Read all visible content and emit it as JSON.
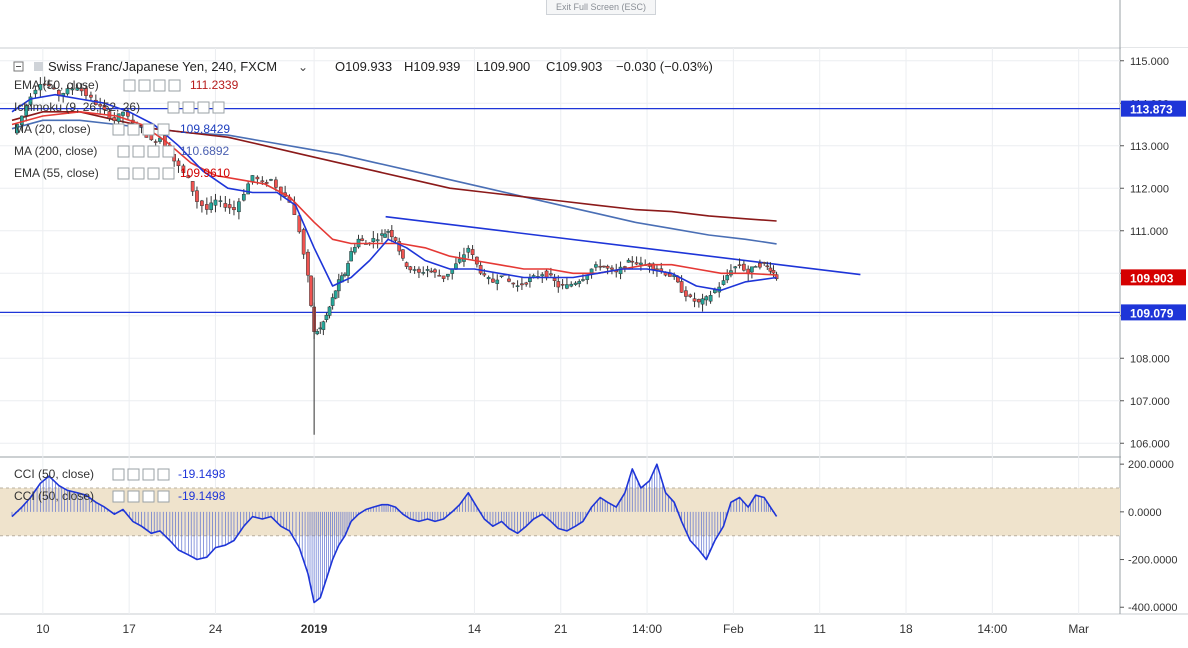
{
  "header": {
    "exit_label": "Exit Full Screen (ESC)",
    "symbol": "Swiss Franc/Japanese Yen, 240, FXCM",
    "ohlc": {
      "o": "O109.933",
      "h": "H109.939",
      "l": "L109.900",
      "c": "C109.903",
      "chg": "−0.030 (−0.03%)"
    }
  },
  "indicators": [
    {
      "label": "EMA (50, close)",
      "value": "111.2339",
      "value_color": "#b71c1c"
    },
    {
      "label": "Ichimoku (9, 26, 52, 26)",
      "value": "",
      "value_color": "#1e3fbf"
    },
    {
      "label": "MA (20, close)",
      "value": "109.8429",
      "value_color": "#1e3fbf"
    },
    {
      "label": "MA (200, close)",
      "value": "110.6892",
      "value_color": "#4a5fb0"
    },
    {
      "label": "EMA (55, close)",
      "value": "109.9610",
      "value_color": "#d00000"
    }
  ],
  "cci_legend": [
    {
      "label": "CCI (50, close)",
      "value": "-19.1498"
    },
    {
      "label": "CCI (50, close)",
      "value": "-19.1498"
    }
  ],
  "colors": {
    "up": "#26a69a",
    "down": "#ef5350",
    "ma20": "#1e35d8",
    "ema55": "#e53935",
    "ma200": "#4a6fb5",
    "ema50": "#8b1a1a",
    "trend": "#1e35d8",
    "cci": "#1e35d8",
    "band": "#efe3cc"
  },
  "chart_data": {
    "type": "candlestick",
    "title": "Swiss Franc/Japanese Yen, 240, FXCM",
    "price_axis": {
      "ticks": [
        "115.000",
        "114.000",
        "113.000",
        "112.000",
        "111.000",
        "110.000",
        "109.000",
        "108.000",
        "107.000",
        "106.000"
      ],
      "range": [
        105.7,
        115.3
      ]
    },
    "x_ticks": [
      {
        "label": "10",
        "x": 10,
        "bold": false
      },
      {
        "label": "17",
        "x": 17,
        "bold": false
      },
      {
        "label": "24",
        "x": 24,
        "bold": false
      },
      {
        "label": "2019",
        "x": 32,
        "bold": true
      },
      {
        "label": "14",
        "x": 45,
        "bold": false
      },
      {
        "label": "21",
        "x": 52,
        "bold": false
      },
      {
        "label": "14:00",
        "x": 59,
        "bold": false
      },
      {
        "label": "Feb",
        "x": 66,
        "bold": false
      },
      {
        "label": "11",
        "x": 73,
        "bold": false
      },
      {
        "label": "18",
        "x": 80,
        "bold": false
      },
      {
        "label": "14:00",
        "x": 87,
        "bold": false
      },
      {
        "label": "Mar",
        "x": 94,
        "bold": false
      }
    ],
    "x_range": [
      7.5,
      98
    ],
    "last_candle_x": 69.5,
    "candle_close_path": [
      [
        7.5,
        113.3
      ],
      [
        8.3,
        113.7
      ],
      [
        9.0,
        114.2
      ],
      [
        9.8,
        114.5
      ],
      [
        10.5,
        114.4
      ],
      [
        11.3,
        114.2
      ],
      [
        12.0,
        114.3
      ],
      [
        12.8,
        114.4
      ],
      [
        13.5,
        114.2
      ],
      [
        14.3,
        114.0
      ],
      [
        15.0,
        113.8
      ],
      [
        15.8,
        113.6
      ],
      [
        16.5,
        113.8
      ],
      [
        17.3,
        113.5
      ],
      [
        18.0,
        113.4
      ],
      [
        18.8,
        113.1
      ],
      [
        19.5,
        113.2
      ],
      [
        20.3,
        112.8
      ],
      [
        21.0,
        112.5
      ],
      [
        21.8,
        112.2
      ],
      [
        22.5,
        111.7
      ],
      [
        23.3,
        111.5
      ],
      [
        24.0,
        111.7
      ],
      [
        24.8,
        111.6
      ],
      [
        25.5,
        111.5
      ],
      [
        26.3,
        111.9
      ],
      [
        27.0,
        112.3
      ],
      [
        27.8,
        112.1
      ],
      [
        28.5,
        112.2
      ],
      [
        29.3,
        111.9
      ],
      [
        30.0,
        111.7
      ],
      [
        30.8,
        111.0
      ],
      [
        31.5,
        109.9
      ],
      [
        32.0,
        108.6
      ],
      [
        32.5,
        108.7
      ],
      [
        33.0,
        109.0
      ],
      [
        33.5,
        109.4
      ],
      [
        34.0,
        109.8
      ],
      [
        34.5,
        110.0
      ],
      [
        35.0,
        110.5
      ],
      [
        35.6,
        110.8
      ],
      [
        36.2,
        110.7
      ],
      [
        36.8,
        110.8
      ],
      [
        37.5,
        110.9
      ],
      [
        38.0,
        111.0
      ],
      [
        38.6,
        110.8
      ],
      [
        39.2,
        110.3
      ],
      [
        39.8,
        110.1
      ],
      [
        40.5,
        110.0
      ],
      [
        41.2,
        110.1
      ],
      [
        41.8,
        110.0
      ],
      [
        42.5,
        109.9
      ],
      [
        43.2,
        110.1
      ],
      [
        43.8,
        110.3
      ],
      [
        44.5,
        110.6
      ],
      [
        45.2,
        110.2
      ],
      [
        45.8,
        109.9
      ],
      [
        46.5,
        109.8
      ],
      [
        47.2,
        110.0
      ],
      [
        47.8,
        109.8
      ],
      [
        48.5,
        109.7
      ],
      [
        49.2,
        109.8
      ],
      [
        49.8,
        109.9
      ],
      [
        50.5,
        110.0
      ],
      [
        51.2,
        109.9
      ],
      [
        51.8,
        109.7
      ],
      [
        52.5,
        109.7
      ],
      [
        53.2,
        109.8
      ],
      [
        53.8,
        109.9
      ],
      [
        54.5,
        110.1
      ],
      [
        55.2,
        110.2
      ],
      [
        55.8,
        110.1
      ],
      [
        56.5,
        110.0
      ],
      [
        57.2,
        110.2
      ],
      [
        57.8,
        110.3
      ],
      [
        58.5,
        110.2
      ],
      [
        59.2,
        110.2
      ],
      [
        59.8,
        110.1
      ],
      [
        60.5,
        110.0
      ],
      [
        61.2,
        109.9
      ],
      [
        61.8,
        109.6
      ],
      [
        62.5,
        109.4
      ],
      [
        63.2,
        109.3
      ],
      [
        63.8,
        109.4
      ],
      [
        64.5,
        109.6
      ],
      [
        65.2,
        109.8
      ],
      [
        65.8,
        110.1
      ],
      [
        66.5,
        110.2
      ],
      [
        67.2,
        110.0
      ],
      [
        67.8,
        110.2
      ],
      [
        68.5,
        110.2
      ],
      [
        69.0,
        110.1
      ],
      [
        69.5,
        109.9
      ]
    ],
    "ma20_line": [
      [
        7.5,
        113.8
      ],
      [
        9,
        114.1
      ],
      [
        11,
        114.2
      ],
      [
        13,
        114.1
      ],
      [
        15,
        114.0
      ],
      [
        17,
        113.8
      ],
      [
        19,
        113.5
      ],
      [
        21,
        113.0
      ],
      [
        23,
        112.4
      ],
      [
        25,
        112.0
      ],
      [
        27,
        111.9
      ],
      [
        29,
        111.9
      ],
      [
        30.5,
        111.6
      ],
      [
        32,
        110.6
      ],
      [
        33.5,
        109.7
      ],
      [
        35,
        109.9
      ],
      [
        36.5,
        110.3
      ],
      [
        38,
        110.8
      ],
      [
        39.5,
        110.6
      ],
      [
        41,
        110.3
      ],
      [
        43,
        110.1
      ],
      [
        45,
        110.1
      ],
      [
        47,
        110.0
      ],
      [
        49,
        109.9
      ],
      [
        51,
        109.9
      ],
      [
        53,
        109.9
      ],
      [
        55,
        110.0
      ],
      [
        57,
        110.1
      ],
      [
        59,
        110.1
      ],
      [
        61,
        110.0
      ],
      [
        63,
        109.7
      ],
      [
        65,
        109.6
      ],
      [
        67,
        109.8
      ],
      [
        69.5,
        109.9
      ]
    ],
    "ema55_line": [
      [
        7.5,
        113.5
      ],
      [
        10,
        113.7
      ],
      [
        13,
        113.8
      ],
      [
        16,
        113.7
      ],
      [
        18,
        113.5
      ],
      [
        20,
        113.1
      ],
      [
        22,
        112.6
      ],
      [
        24,
        112.3
      ],
      [
        26,
        112.2
      ],
      [
        28,
        112.1
      ],
      [
        30,
        111.8
      ],
      [
        32,
        111.2
      ],
      [
        33.5,
        110.8
      ],
      [
        35,
        110.7
      ],
      [
        37,
        110.7
      ],
      [
        39,
        110.7
      ],
      [
        41,
        110.6
      ],
      [
        43,
        110.4
      ],
      [
        45,
        110.3
      ],
      [
        47,
        110.2
      ],
      [
        49,
        110.1
      ],
      [
        51,
        110.1
      ],
      [
        53,
        110.0
      ],
      [
        55,
        110.0
      ],
      [
        57,
        110.1
      ],
      [
        59,
        110.2
      ],
      [
        61,
        110.2
      ],
      [
        63,
        110.1
      ],
      [
        65,
        110.0
      ],
      [
        67,
        110.0
      ],
      [
        69.5,
        109.96
      ]
    ],
    "ema50_line": [
      [
        7.5,
        113.6
      ],
      [
        10,
        113.8
      ],
      [
        13,
        113.8
      ],
      [
        16,
        113.6
      ],
      [
        19,
        113.4
      ],
      [
        22,
        113.3
      ],
      [
        25,
        113.2
      ],
      [
        28,
        113.0
      ],
      [
        31,
        112.8
      ],
      [
        34,
        112.6
      ],
      [
        37,
        112.4
      ],
      [
        40,
        112.2
      ],
      [
        43,
        112.0
      ],
      [
        46,
        111.9
      ],
      [
        49,
        111.8
      ],
      [
        52,
        111.7
      ],
      [
        55,
        111.6
      ],
      [
        58,
        111.5
      ],
      [
        61,
        111.45
      ],
      [
        64,
        111.35
      ],
      [
        67,
        111.28
      ],
      [
        69.5,
        111.23
      ]
    ],
    "ma200_line": [
      [
        7.5,
        113.4
      ],
      [
        10,
        113.6
      ],
      [
        13,
        113.6
      ],
      [
        16,
        113.5
      ],
      [
        19,
        113.4
      ],
      [
        22,
        113.3
      ],
      [
        25,
        113.25
      ],
      [
        28,
        113.1
      ],
      [
        31,
        112.95
      ],
      [
        34,
        112.8
      ],
      [
        37,
        112.6
      ],
      [
        40,
        112.4
      ],
      [
        43,
        112.2
      ],
      [
        46,
        112.0
      ],
      [
        49,
        111.8
      ],
      [
        52,
        111.6
      ],
      [
        55,
        111.4
      ],
      [
        58,
        111.2
      ],
      [
        61,
        111.05
      ],
      [
        64,
        110.9
      ],
      [
        67,
        110.8
      ],
      [
        69.5,
        110.69
      ]
    ],
    "trendline": [
      [
        37.8,
        111.33
      ],
      [
        76.3,
        109.97
      ]
    ],
    "horizontal_levels": [
      {
        "value": 113.873,
        "label": "113.873"
      },
      {
        "value": 109.079,
        "label": "109.079"
      }
    ],
    "last_price": {
      "value": 109.903,
      "label": "109.903"
    },
    "cci": {
      "ticks": [
        "200.0000",
        "0.0000",
        "-200.0000",
        "-400.0000"
      ],
      "range": [
        -420,
        230
      ],
      "band": [
        100,
        -100
      ],
      "series": [
        [
          7.5,
          -20
        ],
        [
          8.3,
          20
        ],
        [
          9.0,
          60
        ],
        [
          9.8,
          120
        ],
        [
          10.5,
          150
        ],
        [
          11.3,
          110
        ],
        [
          12.0,
          90
        ],
        [
          12.8,
          80
        ],
        [
          13.5,
          70
        ],
        [
          14.3,
          40
        ],
        [
          15.0,
          20
        ],
        [
          15.8,
          -10
        ],
        [
          16.5,
          10
        ],
        [
          17.3,
          -40
        ],
        [
          18.0,
          -60
        ],
        [
          18.8,
          -90
        ],
        [
          19.5,
          -80
        ],
        [
          20.3,
          -120
        ],
        [
          21.0,
          -160
        ],
        [
          21.8,
          -180
        ],
        [
          22.5,
          -200
        ],
        [
          23.3,
          -190
        ],
        [
          24.0,
          -150
        ],
        [
          24.8,
          -140
        ],
        [
          25.5,
          -120
        ],
        [
          26.3,
          -60
        ],
        [
          27.0,
          -20
        ],
        [
          27.8,
          -30
        ],
        [
          28.5,
          -20
        ],
        [
          29.3,
          -60
        ],
        [
          30.0,
          -80
        ],
        [
          30.8,
          -150
        ],
        [
          31.5,
          -260
        ],
        [
          32.0,
          -380
        ],
        [
          32.5,
          -360
        ],
        [
          33.0,
          -280
        ],
        [
          33.5,
          -200
        ],
        [
          34.0,
          -140
        ],
        [
          34.5,
          -100
        ],
        [
          35.0,
          -40
        ],
        [
          35.6,
          -10
        ],
        [
          36.2,
          10
        ],
        [
          36.8,
          20
        ],
        [
          37.5,
          30
        ],
        [
          38.0,
          30
        ],
        [
          38.6,
          20
        ],
        [
          39.2,
          -10
        ],
        [
          39.8,
          -30
        ],
        [
          40.5,
          -40
        ],
        [
          41.2,
          -30
        ],
        [
          41.8,
          -40
        ],
        [
          42.5,
          -30
        ],
        [
          43.2,
          0
        ],
        [
          43.8,
          30
        ],
        [
          44.5,
          80
        ],
        [
          45.2,
          20
        ],
        [
          45.8,
          -30
        ],
        [
          46.5,
          -60
        ],
        [
          47.2,
          -40
        ],
        [
          47.8,
          -70
        ],
        [
          48.5,
          -90
        ],
        [
          49.2,
          -60
        ],
        [
          49.8,
          -30
        ],
        [
          50.5,
          -10
        ],
        [
          51.2,
          -40
        ],
        [
          51.8,
          -70
        ],
        [
          52.5,
          -80
        ],
        [
          53.2,
          -60
        ],
        [
          53.8,
          -40
        ],
        [
          54.5,
          20
        ],
        [
          55.2,
          60
        ],
        [
          55.8,
          40
        ],
        [
          56.5,
          20
        ],
        [
          57.2,
          80
        ],
        [
          57.8,
          180
        ],
        [
          58.5,
          100
        ],
        [
          59.2,
          130
        ],
        [
          59.8,
          200
        ],
        [
          60.5,
          80
        ],
        [
          61.2,
          40
        ],
        [
          61.8,
          -40
        ],
        [
          62.5,
          -120
        ],
        [
          63.2,
          -160
        ],
        [
          63.8,
          -200
        ],
        [
          64.5,
          -120
        ],
        [
          65.2,
          -60
        ],
        [
          65.8,
          40
        ],
        [
          66.5,
          60
        ],
        [
          67.2,
          20
        ],
        [
          67.8,
          70
        ],
        [
          68.5,
          60
        ],
        [
          69.0,
          20
        ],
        [
          69.5,
          -19
        ]
      ]
    }
  }
}
